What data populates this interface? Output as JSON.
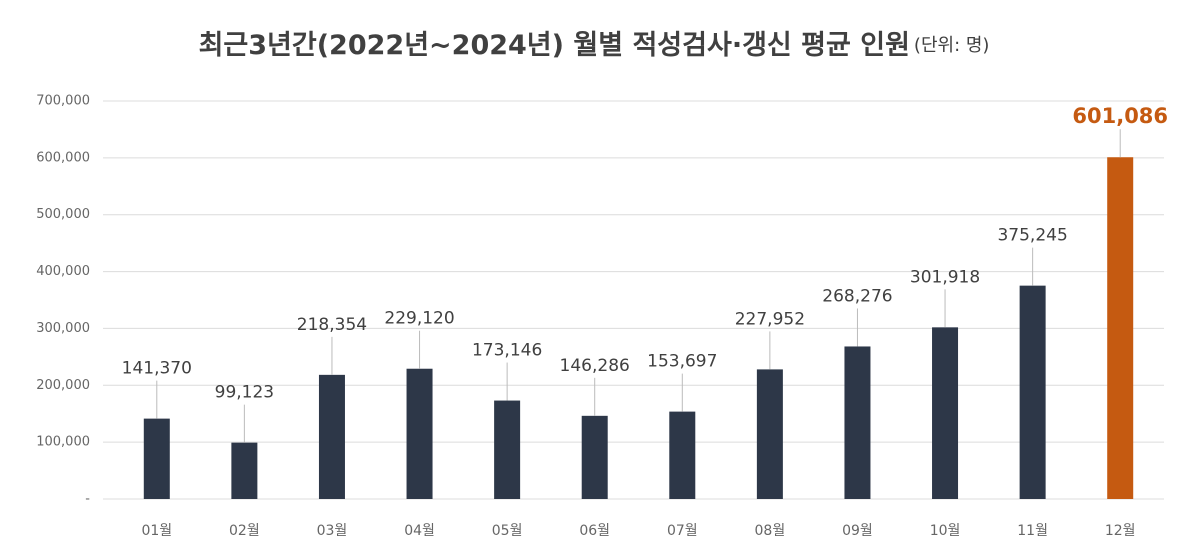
{
  "chart_data": {
    "type": "bar",
    "title": "최근3년간(2022년~2024년) 월별 적성검사·갱신 평균 인원",
    "unit": "(단위: 명)",
    "categories": [
      "01월",
      "02월",
      "03월",
      "04월",
      "05월",
      "06월",
      "07월",
      "08월",
      "09월",
      "10월",
      "11월",
      "12월"
    ],
    "values": [
      141370,
      99123,
      218354,
      229120,
      173146,
      146286,
      153697,
      227952,
      268276,
      301918,
      375245,
      601086
    ],
    "value_labels": [
      "141,370",
      "99,123",
      "218,354",
      "229,120",
      "173,146",
      "146,286",
      "153,697",
      "227,952",
      "268,276",
      "301,918",
      "375,245",
      "601,086"
    ],
    "color": "#2d3748",
    "colors": [
      "#2d3748",
      "#2d3748",
      "#2d3748",
      "#2d3748",
      "#2d3748",
      "#2d3748",
      "#2d3748",
      "#2d3748",
      "#2d3748",
      "#2d3748",
      "#2d3748",
      "#c55a11"
    ],
    "ylim": [
      0,
      700000
    ],
    "yticks": [
      {
        "value": 0,
        "label": "-"
      },
      {
        "value": 100000,
        "label": "100,000"
      },
      {
        "value": 200000,
        "label": "200,000"
      },
      {
        "value": 300000,
        "label": "300,000"
      },
      {
        "value": 400000,
        "label": "400,000"
      },
      {
        "value": 500000,
        "label": "500,000"
      },
      {
        "value": 600000,
        "label": "600,000"
      },
      {
        "value": 700000,
        "label": "700,000"
      }
    ],
    "grid": true
  }
}
